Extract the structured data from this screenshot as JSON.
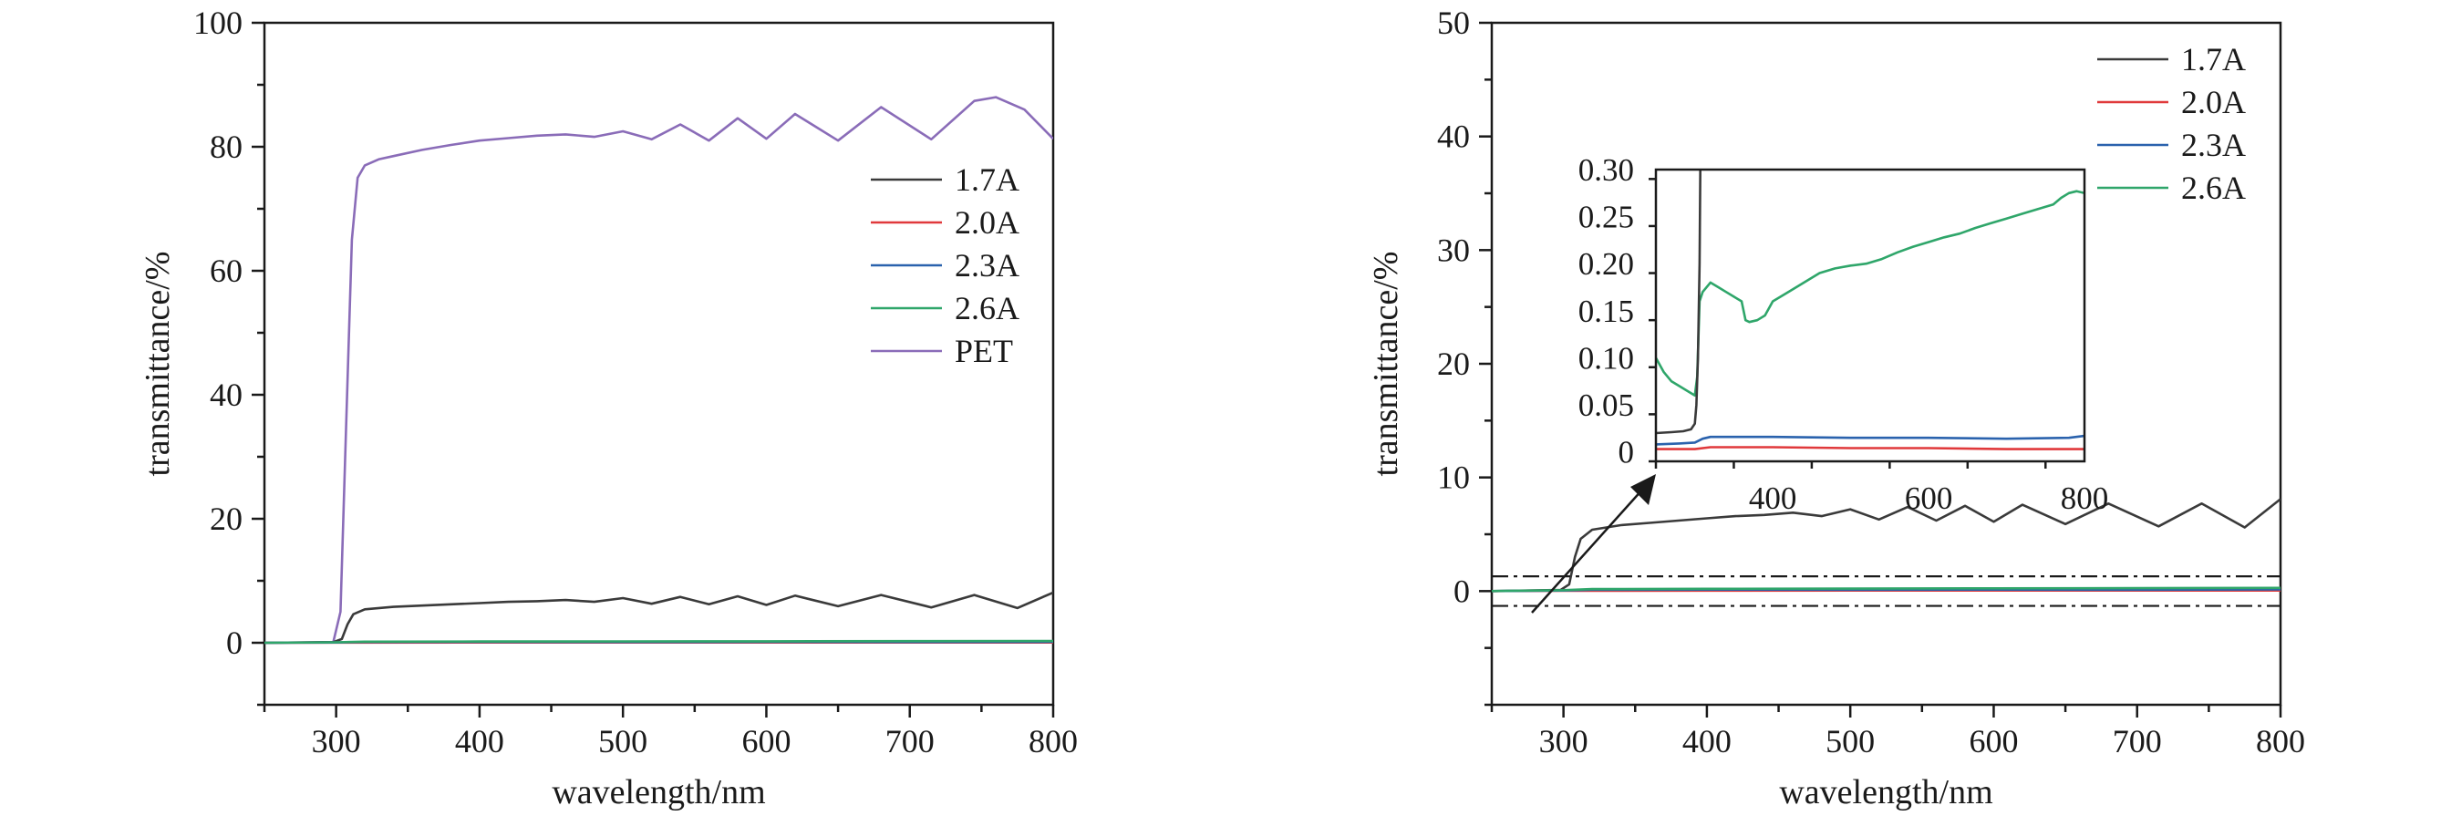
{
  "chart_data": [
    {
      "type": "line",
      "xlabel": "wavelength/nm",
      "ylabel": "transmittance/%",
      "xlim": [
        250,
        800
      ],
      "ylim": [
        -10,
        100
      ],
      "xticks": [
        300,
        400,
        500,
        600,
        700,
        800
      ],
      "yticks": [
        0,
        20,
        40,
        60,
        80,
        100
      ],
      "legend_position": "right-middle",
      "grid": false,
      "series": [
        {
          "name": "1.7A",
          "color": "#3a3a3a",
          "points": [
            [
              250,
              0
            ],
            [
              298,
              0.1
            ],
            [
              304,
              0.6
            ],
            [
              308,
              3.0
            ],
            [
              312,
              4.6
            ],
            [
              320,
              5.4
            ],
            [
              340,
              5.8
            ],
            [
              360,
              6.0
            ],
            [
              380,
              6.2
            ],
            [
              400,
              6.4
            ],
            [
              420,
              6.6
            ],
            [
              440,
              6.7
            ],
            [
              460,
              6.9
            ],
            [
              480,
              6.6
            ],
            [
              500,
              7.2
            ],
            [
              520,
              6.3
            ],
            [
              540,
              7.4
            ],
            [
              560,
              6.2
            ],
            [
              580,
              7.5
            ],
            [
              600,
              6.1
            ],
            [
              620,
              7.6
            ],
            [
              650,
              5.9
            ],
            [
              680,
              7.7
            ],
            [
              715,
              5.7
            ],
            [
              745,
              7.7
            ],
            [
              775,
              5.6
            ],
            [
              800,
              8.1
            ]
          ]
        },
        {
          "name": "2.0A",
          "color": "#e0393b",
          "points": [
            [
              250,
              0
            ],
            [
              300,
              0.03
            ],
            [
              400,
              0.04
            ],
            [
              500,
              0.05
            ],
            [
              600,
              0.05
            ],
            [
              700,
              0.05
            ],
            [
              800,
              0.05
            ]
          ]
        },
        {
          "name": "2.3A",
          "color": "#2a62ad",
          "points": [
            [
              250,
              0
            ],
            [
              300,
              0.05
            ],
            [
              320,
              0.12
            ],
            [
              400,
              0.13
            ],
            [
              500,
              0.12
            ],
            [
              600,
              0.13
            ],
            [
              700,
              0.12
            ],
            [
              800,
              0.15
            ]
          ]
        },
        {
          "name": "2.6A",
          "color": "#2fa66a",
          "points": [
            [
              250,
              0
            ],
            [
              300,
              0.08
            ],
            [
              320,
              0.18
            ],
            [
              400,
              0.2
            ],
            [
              500,
              0.22
            ],
            [
              600,
              0.24
            ],
            [
              700,
              0.26
            ],
            [
              800,
              0.28
            ]
          ]
        },
        {
          "name": "PET",
          "color": "#8a6cb8",
          "points": [
            [
              250,
              0
            ],
            [
              298,
              0.1
            ],
            [
              303,
              5
            ],
            [
              307,
              35
            ],
            [
              311,
              65
            ],
            [
              315,
              75
            ],
            [
              320,
              77
            ],
            [
              330,
              78
            ],
            [
              340,
              78.5
            ],
            [
              360,
              79.5
            ],
            [
              380,
              80.3
            ],
            [
              400,
              81
            ],
            [
              420,
              81.4
            ],
            [
              440,
              81.8
            ],
            [
              460,
              82.0
            ],
            [
              480,
              81.6
            ],
            [
              500,
              82.5
            ],
            [
              520,
              81.2
            ],
            [
              540,
              83.6
            ],
            [
              560,
              81.0
            ],
            [
              580,
              84.6
            ],
            [
              600,
              81.3
            ],
            [
              620,
              85.3
            ],
            [
              650,
              81.0
            ],
            [
              680,
              86.4
            ],
            [
              715,
              81.2
            ],
            [
              745,
              87.4
            ],
            [
              760,
              88.0
            ],
            [
              780,
              86.0
            ],
            [
              800,
              81.3
            ]
          ]
        }
      ]
    },
    {
      "type": "line",
      "xlabel": "wavelength/nm",
      "ylabel": "transmittance/%",
      "xlim": [
        250,
        800
      ],
      "ylim": [
        -10,
        50
      ],
      "xticks": [
        300,
        400,
        500,
        600,
        700,
        800
      ],
      "yticks": [
        0,
        10,
        20,
        30,
        40,
        50
      ],
      "legend_position": "top-right",
      "grid": false,
      "zoom_band": [
        -1.3,
        1.3
      ],
      "series": [
        {
          "name": "1.7A",
          "color": "#3a3a3a",
          "points": [
            [
              250,
              0
            ],
            [
              298,
              0.1
            ],
            [
              304,
              0.6
            ],
            [
              308,
              3.0
            ],
            [
              312,
              4.6
            ],
            [
              320,
              5.4
            ],
            [
              340,
              5.8
            ],
            [
              360,
              6.0
            ],
            [
              380,
              6.2
            ],
            [
              400,
              6.4
            ],
            [
              420,
              6.6
            ],
            [
              440,
              6.7
            ],
            [
              460,
              6.9
            ],
            [
              480,
              6.6
            ],
            [
              500,
              7.2
            ],
            [
              520,
              6.3
            ],
            [
              540,
              7.4
            ],
            [
              560,
              6.2
            ],
            [
              580,
              7.5
            ],
            [
              600,
              6.1
            ],
            [
              620,
              7.6
            ],
            [
              650,
              5.9
            ],
            [
              680,
              7.7
            ],
            [
              715,
              5.7
            ],
            [
              745,
              7.7
            ],
            [
              775,
              5.6
            ],
            [
              800,
              8.1
            ]
          ]
        },
        {
          "name": "2.0A",
          "color": "#e0393b",
          "points": [
            [
              250,
              0
            ],
            [
              300,
              0.03
            ],
            [
              400,
              0.04
            ],
            [
              500,
              0.05
            ],
            [
              600,
              0.05
            ],
            [
              700,
              0.05
            ],
            [
              800,
              0.05
            ]
          ]
        },
        {
          "name": "2.3A",
          "color": "#2a62ad",
          "points": [
            [
              250,
              0
            ],
            [
              300,
              0.05
            ],
            [
              320,
              0.12
            ],
            [
              400,
              0.13
            ],
            [
              500,
              0.12
            ],
            [
              600,
              0.13
            ],
            [
              700,
              0.12
            ],
            [
              800,
              0.15
            ]
          ]
        },
        {
          "name": "2.6A",
          "color": "#2fa66a",
          "points": [
            [
              250,
              0
            ],
            [
              300,
              0.08
            ],
            [
              320,
              0.18
            ],
            [
              400,
              0.2
            ],
            [
              500,
              0.22
            ],
            [
              600,
              0.24
            ],
            [
              700,
              0.26
            ],
            [
              800,
              0.28
            ]
          ]
        }
      ],
      "inset": {
        "xlim": [
          250,
          800
        ],
        "ylim": [
          -0.01,
          0.3
        ],
        "xticks": [
          400,
          600,
          800
        ],
        "yticks": [
          0,
          0.05,
          0.1,
          0.15,
          0.2,
          0.25,
          0.3
        ],
        "ytick_labels": [
          "0",
          "0.05",
          "0.10",
          "0.15",
          "0.20",
          "0.25",
          "0.30"
        ],
        "series": [
          {
            "name": "2.6A",
            "color": "#2fa66a",
            "points": [
              [
                250,
                0.1
              ],
              [
                260,
                0.085
              ],
              [
                270,
                0.075
              ],
              [
                280,
                0.07
              ],
              [
                290,
                0.065
              ],
              [
                300,
                0.06
              ],
              [
                303,
                0.08
              ],
              [
                306,
                0.16
              ],
              [
                310,
                0.17
              ],
              [
                320,
                0.18
              ],
              [
                330,
                0.175
              ],
              [
                340,
                0.17
              ],
              [
                350,
                0.165
              ],
              [
                360,
                0.16
              ],
              [
                365,
                0.14
              ],
              [
                370,
                0.138
              ],
              [
                380,
                0.14
              ],
              [
                390,
                0.145
              ],
              [
                400,
                0.16
              ],
              [
                420,
                0.17
              ],
              [
                440,
                0.18
              ],
              [
                460,
                0.19
              ],
              [
                480,
                0.195
              ],
              [
                500,
                0.198
              ],
              [
                520,
                0.2
              ],
              [
                540,
                0.205
              ],
              [
                560,
                0.212
              ],
              [
                580,
                0.218
              ],
              [
                600,
                0.223
              ],
              [
                620,
                0.228
              ],
              [
                640,
                0.232
              ],
              [
                660,
                0.238
              ],
              [
                680,
                0.243
              ],
              [
                700,
                0.248
              ],
              [
                720,
                0.253
              ],
              [
                740,
                0.258
              ],
              [
                760,
                0.263
              ],
              [
                770,
                0.27
              ],
              [
                780,
                0.275
              ],
              [
                790,
                0.277
              ],
              [
                800,
                0.275
              ]
            ]
          },
          {
            "name": "1.7A",
            "color": "#3a3a3a",
            "points": [
              [
                250,
                0.02
              ],
              [
                270,
                0.021
              ],
              [
                285,
                0.022
              ],
              [
                295,
                0.024
              ],
              [
                300,
                0.03
              ],
              [
                302,
                0.05
              ],
              [
                304,
                0.1
              ],
              [
                306,
                0.2
              ],
              [
                307,
                0.3
              ],
              [
                308,
                0.35
              ]
            ]
          },
          {
            "name": "2.3A",
            "color": "#2a62ad",
            "points": [
              [
                250,
                0.008
              ],
              [
                280,
                0.009
              ],
              [
                300,
                0.01
              ],
              [
                310,
                0.014
              ],
              [
                320,
                0.016
              ],
              [
                400,
                0.016
              ],
              [
                500,
                0.015
              ],
              [
                600,
                0.015
              ],
              [
                700,
                0.014
              ],
              [
                780,
                0.015
              ],
              [
                800,
                0.017
              ]
            ]
          },
          {
            "name": "2.0A",
            "color": "#e0393b",
            "points": [
              [
                250,
                0.003
              ],
              [
                300,
                0.003
              ],
              [
                320,
                0.005
              ],
              [
                400,
                0.005
              ],
              [
                500,
                0.004
              ],
              [
                600,
                0.004
              ],
              [
                700,
                0.003
              ],
              [
                800,
                0.003
              ]
            ]
          }
        ]
      }
    }
  ]
}
